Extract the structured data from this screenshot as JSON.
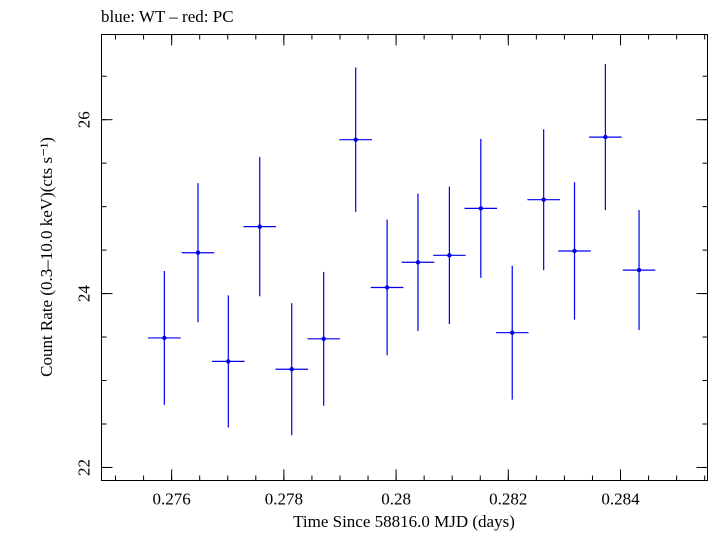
{
  "chart_data": {
    "type": "scatter",
    "title": "blue: WT – red: PC",
    "xlabel": "Time Since 58816.0 MJD (days)",
    "ylabel": "Count Rate (0.3–10.0 keV)(cts s⁻¹)",
    "xlim": [
      0.27475,
      0.28555
    ],
    "ylim": [
      21.85,
      26.98
    ],
    "x_ticks": [
      {
        "value": 0.276,
        "label": "0.276"
      },
      {
        "value": 0.278,
        "label": "0.278"
      },
      {
        "value": 0.28,
        "label": "0.28"
      },
      {
        "value": 0.282,
        "label": "0.282"
      },
      {
        "value": 0.284,
        "label": "0.284"
      }
    ],
    "y_ticks": [
      {
        "value": 22,
        "label": "22"
      },
      {
        "value": 24,
        "label": "24"
      },
      {
        "value": 26,
        "label": "26"
      }
    ],
    "x_minor_step": 0.0005,
    "y_minor_step": 0.5,
    "grid": false,
    "series": [
      {
        "color": "#0000ee",
        "points": [
          {
            "x": 0.27587,
            "y": 23.49,
            "xerr": 0.00029,
            "yerr": 0.77
          },
          {
            "x": 0.27647,
            "y": 24.47,
            "xerr": 0.00029,
            "yerr": 0.8
          },
          {
            "x": 0.27701,
            "y": 23.22,
            "xerr": 0.00029,
            "yerr": 0.76
          },
          {
            "x": 0.27757,
            "y": 24.77,
            "xerr": 0.00029,
            "yerr": 0.8
          },
          {
            "x": 0.27814,
            "y": 23.13,
            "xerr": 0.00029,
            "yerr": 0.76
          },
          {
            "x": 0.27871,
            "y": 23.48,
            "xerr": 0.00029,
            "yerr": 0.77
          },
          {
            "x": 0.27928,
            "y": 25.77,
            "xerr": 0.00029,
            "yerr": 0.83
          },
          {
            "x": 0.27984,
            "y": 24.07,
            "xerr": 0.00029,
            "yerr": 0.78
          },
          {
            "x": 0.28039,
            "y": 24.36,
            "xerr": 0.00029,
            "yerr": 0.79
          },
          {
            "x": 0.28095,
            "y": 24.44,
            "xerr": 0.00029,
            "yerr": 0.79
          },
          {
            "x": 0.28151,
            "y": 24.98,
            "xerr": 0.00029,
            "yerr": 0.8
          },
          {
            "x": 0.28207,
            "y": 23.55,
            "xerr": 0.00029,
            "yerr": 0.77
          },
          {
            "x": 0.28263,
            "y": 25.08,
            "xerr": 0.00029,
            "yerr": 0.81
          },
          {
            "x": 0.28318,
            "y": 24.49,
            "xerr": 0.00029,
            "yerr": 0.79
          },
          {
            "x": 0.28373,
            "y": 25.8,
            "xerr": 0.00029,
            "yerr": 0.84
          },
          {
            "x": 0.28433,
            "y": 24.27,
            "xerr": 0.00029,
            "yerr": 0.69
          }
        ]
      }
    ]
  }
}
